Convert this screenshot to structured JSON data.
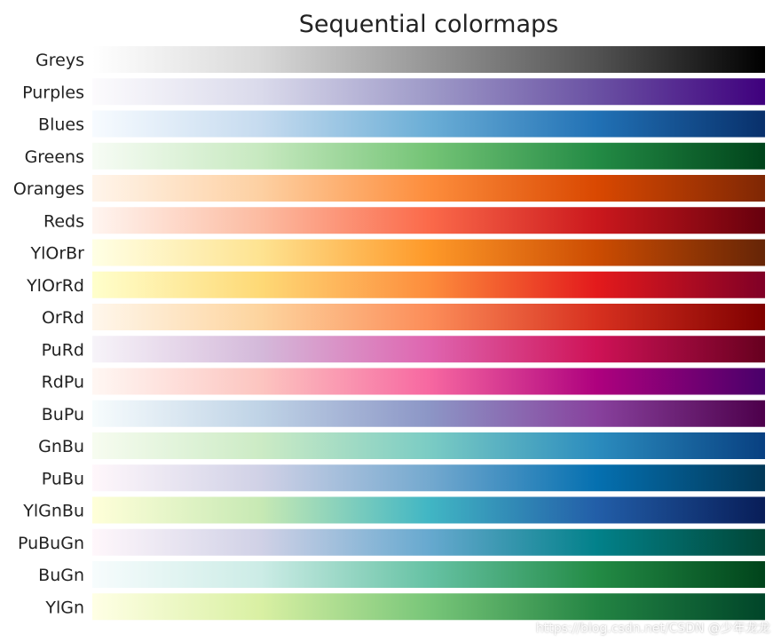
{
  "watermark": "https://blog.csdn.net/CSDN @少年龙龙",
  "chart_data": {
    "type": "colormap-strips",
    "title": "Sequential colormaps",
    "colormaps": [
      {
        "name": "Greys",
        "stops": [
          "#ffffff",
          "#d9d9d9",
          "#969696",
          "#525252",
          "#000000"
        ]
      },
      {
        "name": "Purples",
        "stops": [
          "#fcfbfd",
          "#dadaeb",
          "#9e9ac8",
          "#6a51a3",
          "#3f007d"
        ]
      },
      {
        "name": "Blues",
        "stops": [
          "#f7fbff",
          "#c6dbef",
          "#6baed6",
          "#2171b5",
          "#08306b"
        ]
      },
      {
        "name": "Greens",
        "stops": [
          "#f7fcf5",
          "#c7e9c0",
          "#74c476",
          "#238b45",
          "#00441b"
        ]
      },
      {
        "name": "Oranges",
        "stops": [
          "#fff5eb",
          "#fdd0a2",
          "#fd8d3c",
          "#d94801",
          "#7f2704"
        ]
      },
      {
        "name": "Reds",
        "stops": [
          "#fff5f0",
          "#fcbba1",
          "#fb6a4a",
          "#cb181d",
          "#67000d"
        ]
      },
      {
        "name": "YlOrBr",
        "stops": [
          "#ffffe5",
          "#fee391",
          "#fe9929",
          "#cc4c02",
          "#662506"
        ]
      },
      {
        "name": "YlOrRd",
        "stops": [
          "#ffffcc",
          "#fed976",
          "#fd8d3c",
          "#e31a1c",
          "#800026"
        ]
      },
      {
        "name": "OrRd",
        "stops": [
          "#fff7ec",
          "#fdd49e",
          "#fc8d59",
          "#d7301f",
          "#7f0000"
        ]
      },
      {
        "name": "PuRd",
        "stops": [
          "#f7f4f9",
          "#d4b9da",
          "#df65b0",
          "#ce1256",
          "#67001f"
        ]
      },
      {
        "name": "RdPu",
        "stops": [
          "#fff7f3",
          "#fcc5c0",
          "#f768a1",
          "#ae017e",
          "#49006a"
        ]
      },
      {
        "name": "BuPu",
        "stops": [
          "#f7fcfd",
          "#bfd3e6",
          "#8c96c6",
          "#88419d",
          "#4d004b"
        ]
      },
      {
        "name": "GnBu",
        "stops": [
          "#f7fcf0",
          "#ccebc5",
          "#7bccc4",
          "#2b8cbe",
          "#084081"
        ]
      },
      {
        "name": "PuBu",
        "stops": [
          "#fff7fb",
          "#d0d1e6",
          "#74a9cf",
          "#0570b0",
          "#023858"
        ]
      },
      {
        "name": "YlGnBu",
        "stops": [
          "#ffffd9",
          "#c7e9b4",
          "#41b6c4",
          "#225ea8",
          "#081d58"
        ]
      },
      {
        "name": "PuBuGn",
        "stops": [
          "#fff7fb",
          "#d0d1e6",
          "#67a9cf",
          "#02818a",
          "#014636"
        ]
      },
      {
        "name": "BuGn",
        "stops": [
          "#f7fcfd",
          "#ccece6",
          "#66c2a4",
          "#238b45",
          "#00441b"
        ]
      },
      {
        "name": "YlGn",
        "stops": [
          "#ffffe5",
          "#d9f0a3",
          "#78c679",
          "#238443",
          "#004529"
        ]
      }
    ]
  }
}
